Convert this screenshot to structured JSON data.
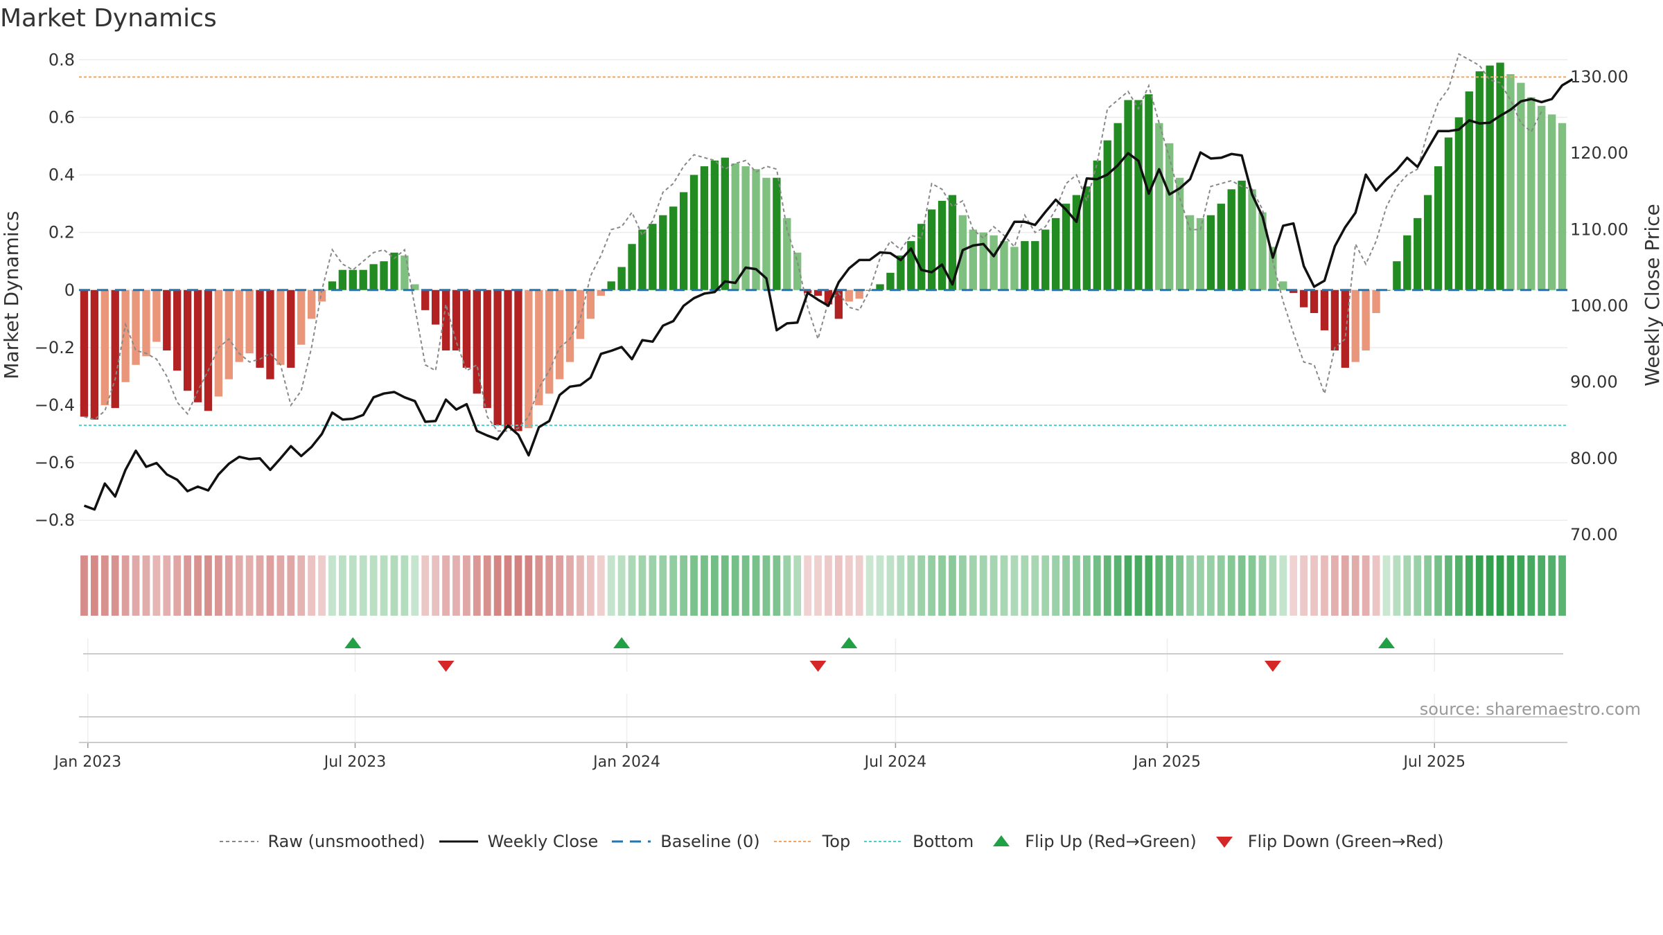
{
  "title": "Market Dynamics",
  "source": "source: sharemaestro.com",
  "chart_data": {
    "type": "bar",
    "title": "Market Dynamics",
    "ylabel_left": "Market Dynamics",
    "ylabel_right": "Weekly Close Price",
    "ylim_left": [
      -0.85,
      0.82
    ],
    "ylim_right": [
      70,
      133
    ],
    "yticks_left": [
      "0.8",
      "0.6",
      "0.4",
      "0.2",
      "0",
      "−0.2",
      "−0.4",
      "−0.6",
      "−0.8"
    ],
    "yticks_right": [
      "130.00",
      "120.00",
      "110.00",
      "100.00",
      "90.00",
      "80.00",
      "70.00"
    ],
    "xticks": [
      "Jan 2023",
      "Jul 2023",
      "Jan 2024",
      "Jul 2024",
      "Jan 2025",
      "Jul 2025"
    ],
    "x_start": "2022-12-26",
    "x_step_days": 7,
    "top_line": 0.74,
    "bottom_line": -0.47,
    "baseline": 0,
    "colors": {
      "strong_red": "#b22222",
      "weak_red": "#e9967a",
      "strong_green": "#228b22",
      "weak_green": "#7fbf7f",
      "weekly_close": "#111111",
      "raw": "#888888",
      "baseline": "#1f77b4",
      "top": "#f4a460",
      "bottom": "#48d1cc",
      "flip_up": "#22a046",
      "flip_down": "#d62728"
    },
    "series": [
      {
        "name": "Market Dynamics",
        "values": [
          -0.44,
          -0.45,
          -0.4,
          -0.41,
          -0.32,
          -0.26,
          -0.23,
          -0.18,
          -0.21,
          -0.28,
          -0.35,
          -0.39,
          -0.42,
          -0.37,
          -0.31,
          -0.25,
          -0.22,
          -0.27,
          -0.31,
          -0.26,
          -0.27,
          -0.19,
          -0.1,
          -0.04,
          0.03,
          0.07,
          0.07,
          0.07,
          0.09,
          0.1,
          0.13,
          0.12,
          0.02,
          -0.07,
          -0.12,
          -0.21,
          -0.21,
          -0.27,
          -0.36,
          -0.41,
          -0.47,
          -0.48,
          -0.49,
          -0.48,
          -0.4,
          -0.36,
          -0.31,
          -0.25,
          -0.17,
          -0.1,
          -0.02,
          0.03,
          0.08,
          0.16,
          0.21,
          0.23,
          0.26,
          0.29,
          0.34,
          0.4,
          0.43,
          0.45,
          0.46,
          0.44,
          0.43,
          0.42,
          0.39,
          0.39,
          0.25,
          0.13,
          -0.01,
          -0.02,
          -0.05,
          -0.1,
          -0.04,
          -0.03,
          0.0,
          0.02,
          0.06,
          0.12,
          0.17,
          0.23,
          0.28,
          0.31,
          0.33,
          0.26,
          0.21,
          0.2,
          0.19,
          0.17,
          0.15,
          0.17,
          0.17,
          0.21,
          0.25,
          0.3,
          0.33,
          0.36,
          0.45,
          0.52,
          0.58,
          0.66,
          0.66,
          0.68,
          0.58,
          0.51,
          0.39,
          0.26,
          0.25,
          0.26,
          0.3,
          0.35,
          0.38,
          0.35,
          0.27,
          0.15,
          0.03,
          -0.01,
          -0.06,
          -0.08,
          -0.14,
          -0.21,
          -0.27,
          -0.25,
          -0.21,
          -0.08,
          0.0,
          0.1,
          0.19,
          0.25,
          0.33,
          0.43,
          0.53,
          0.6,
          0.69,
          0.76,
          0.78,
          0.79,
          0.75,
          0.72,
          0.67,
          0.64,
          0.61,
          0.58
        ]
      },
      {
        "name": "Raw (unsmoothed)",
        "values": [
          -0.44,
          -0.45,
          -0.42,
          -0.31,
          -0.12,
          -0.21,
          -0.22,
          -0.24,
          -0.3,
          -0.39,
          -0.43,
          -0.35,
          -0.28,
          -0.2,
          -0.17,
          -0.22,
          -0.25,
          -0.24,
          -0.22,
          -0.26,
          -0.4,
          -0.35,
          -0.2,
          0.0,
          0.14,
          0.09,
          0.07,
          0.1,
          0.13,
          0.14,
          0.11,
          0.14,
          -0.06,
          -0.26,
          -0.28,
          -0.05,
          -0.18,
          -0.28,
          -0.26,
          -0.44,
          -0.49,
          -0.49,
          -0.48,
          -0.44,
          -0.34,
          -0.28,
          -0.2,
          -0.17,
          -0.1,
          0.05,
          0.12,
          0.21,
          0.22,
          0.27,
          0.19,
          0.24,
          0.34,
          0.37,
          0.43,
          0.47,
          0.46,
          0.45,
          0.42,
          0.44,
          0.45,
          0.41,
          0.43,
          0.42,
          0.21,
          0.1,
          -0.06,
          -0.17,
          -0.04,
          -0.01,
          -0.06,
          -0.07,
          0.0,
          0.11,
          0.17,
          0.14,
          0.19,
          0.18,
          0.37,
          0.35,
          0.29,
          0.31,
          0.21,
          0.18,
          0.22,
          0.19,
          0.15,
          0.26,
          0.2,
          0.22,
          0.28,
          0.37,
          0.4,
          0.31,
          0.44,
          0.63,
          0.66,
          0.69,
          0.63,
          0.71,
          0.58,
          0.46,
          0.32,
          0.21,
          0.21,
          0.36,
          0.37,
          0.38,
          0.36,
          0.35,
          0.28,
          0.1,
          -0.04,
          -0.15,
          -0.25,
          -0.26,
          -0.36,
          -0.2,
          -0.17,
          0.16,
          0.09,
          0.17,
          0.29,
          0.36,
          0.4,
          0.42,
          0.55,
          0.65,
          0.7,
          0.82,
          0.8,
          0.78,
          0.73,
          0.72,
          0.66,
          0.58,
          0.55,
          0.62
        ]
      },
      {
        "name": "Weekly Close",
        "values": [
          73.8,
          73.3,
          76.7,
          75.0,
          78.5,
          81.0,
          78.9,
          79.4,
          77.9,
          77.2,
          75.7,
          76.3,
          75.8,
          77.9,
          79.3,
          80.2,
          79.9,
          80.0,
          78.5,
          80.0,
          81.6,
          80.3,
          81.5,
          83.2,
          86.0,
          85.1,
          85.2,
          85.7,
          88.0,
          88.5,
          88.7,
          88.0,
          87.5,
          84.8,
          84.9,
          87.7,
          86.4,
          87.1,
          83.6,
          83.0,
          82.5,
          84.3,
          83.1,
          80.4,
          84.1,
          84.9,
          88.3,
          89.4,
          89.6,
          90.6,
          93.7,
          94.1,
          94.6,
          93.0,
          95.5,
          95.3,
          97.4,
          98.0,
          100.0,
          101.0,
          101.6,
          101.8,
          103.2,
          103.0,
          105.0,
          104.8,
          103.6,
          96.8,
          97.7,
          97.8,
          101.7,
          100.8,
          100.0,
          103.1,
          104.9,
          106.0,
          106.0,
          107.0,
          106.9,
          106.0,
          107.5,
          104.7,
          104.4,
          105.4,
          102.8,
          107.3,
          107.9,
          108.1,
          106.5,
          108.7,
          111.0,
          111.0,
          110.6,
          112.3,
          113.9,
          112.6,
          111.0,
          116.7,
          116.6,
          117.2,
          118.4,
          120.0,
          119.0,
          114.7,
          117.9,
          114.6,
          115.4,
          116.6,
          120.1,
          119.3,
          119.4,
          119.9,
          119.7,
          114.6,
          111.7,
          106.3,
          110.5,
          110.8,
          105.2,
          102.5,
          103.3,
          107.8,
          110.3,
          112.2,
          117.2,
          115.1,
          116.6,
          117.8,
          119.4,
          118.2,
          120.6,
          122.9,
          122.9,
          123.1,
          124.3,
          123.9,
          124.0,
          124.9,
          125.7,
          126.8,
          127.1,
          126.7,
          127.1,
          128.9,
          129.7
        ]
      },
      {
        "name": "Baseline (0)"
      },
      {
        "name": "Top"
      },
      {
        "name": "Bottom"
      },
      {
        "name": "Flip Up (Red→Green)",
        "dates": [
          "2023-06-26",
          "2023-12-25",
          "2024-05-27",
          "2025-05-26"
        ]
      },
      {
        "name": "Flip Down (Green→Red)",
        "dates": [
          "2023-08-28",
          "2024-05-06",
          "2025-03-10"
        ]
      }
    ]
  },
  "legend": [
    {
      "key": "raw",
      "label": "Raw (unsmoothed)"
    },
    {
      "key": "close",
      "label": "Weekly Close"
    },
    {
      "key": "baseline",
      "label": "Baseline (0)"
    },
    {
      "key": "top",
      "label": "Top"
    },
    {
      "key": "bottom",
      "label": "Bottom"
    },
    {
      "key": "flip_up",
      "label": "Flip Up (Red→Green)"
    },
    {
      "key": "flip_down",
      "label": "Flip Down (Green→Red)"
    }
  ]
}
